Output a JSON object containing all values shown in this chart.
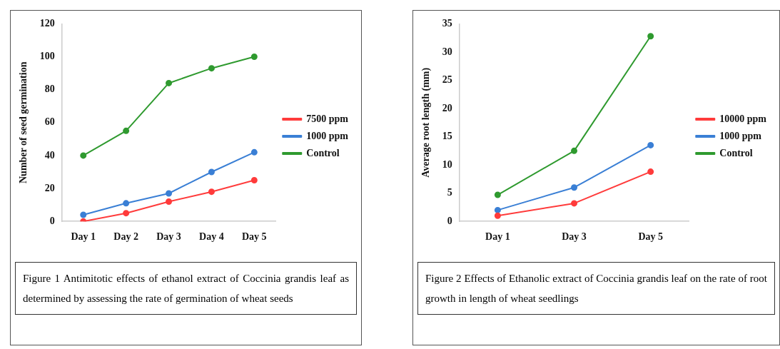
{
  "chart_data": [
    {
      "type": "line",
      "categories": [
        "Day 1",
        "Day 2",
        "Day 3",
        "Day 4",
        "Day 5"
      ],
      "ylabel": "Number of seed germination",
      "ylim": [
        0,
        120
      ],
      "yticks": [
        0,
        20,
        40,
        60,
        80,
        100,
        120
      ],
      "grid": false,
      "legend": "right",
      "marker": "circle",
      "series": [
        {
          "name": "7500 ppm",
          "color": "#ff3b3b",
          "values": [
            0,
            5,
            12,
            18,
            25
          ]
        },
        {
          "name": "1000 ppm",
          "color": "#3a7fd5",
          "values": [
            4,
            11,
            17,
            30,
            42
          ]
        },
        {
          "name": "Control",
          "color": "#2f9a2f",
          "values": [
            40,
            55,
            84,
            93,
            100
          ]
        }
      ],
      "annotations": [
        "Figure 1 Antimitotic effects of ethanol extract of Coccinia grandis leaf as determined by assessing the rate of germination of wheat seeds"
      ]
    },
    {
      "type": "line",
      "categories": [
        "Day 1",
        "Day 3",
        "Day 5"
      ],
      "ylabel": "Average root length (mm)",
      "ylim": [
        0,
        35
      ],
      "yticks": [
        0,
        5,
        10,
        15,
        20,
        25,
        30,
        35
      ],
      "grid": false,
      "legend": "right",
      "marker": "circle",
      "series": [
        {
          "name": "10000 ppm",
          "color": "#ff3b3b",
          "values": [
            1,
            3.2,
            8.8
          ]
        },
        {
          "name": "1000 ppm",
          "color": "#3a7fd5",
          "values": [
            2,
            6,
            13.5
          ]
        },
        {
          "name": "Control",
          "color": "#2f9a2f",
          "values": [
            4.7,
            12.5,
            32.8
          ]
        }
      ],
      "annotations": [
        "Figure 2 Effects of Ethanolic extract of Coccinia grandis leaf on the rate of root growth in length of wheat seedlings"
      ]
    }
  ]
}
